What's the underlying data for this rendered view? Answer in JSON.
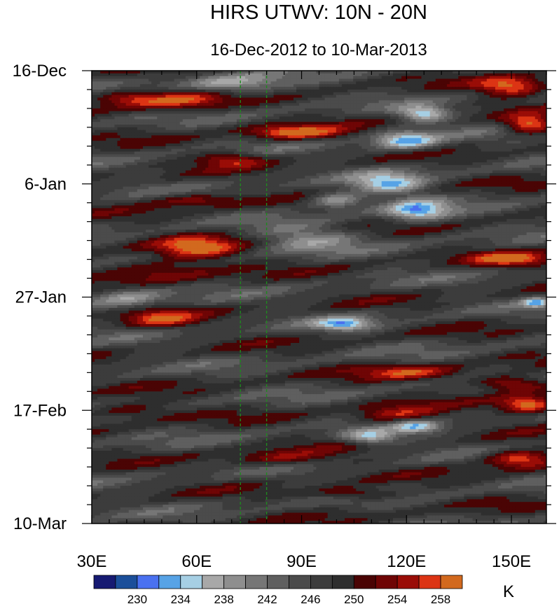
{
  "chart_data": {
    "type": "heatmap",
    "title": "HIRS UTWV: 10N - 20N",
    "subtitle": "16-Dec-2012 to 10-Mar-2013",
    "units": "K",
    "x_ticks": [
      {
        "value": 30,
        "label": "30E"
      },
      {
        "value": 60,
        "label": "60E"
      },
      {
        "value": 90,
        "label": "90E"
      },
      {
        "value": 120,
        "label": "120E"
      },
      {
        "value": 150,
        "label": "150E"
      }
    ],
    "x_range": [
      30,
      160
    ],
    "y_ticks": [
      {
        "value": 0,
        "label": "16-Dec"
      },
      {
        "value": 21,
        "label": "6-Jan"
      },
      {
        "value": 42,
        "label": "27-Jan"
      },
      {
        "value": 63,
        "label": "17-Feb"
      },
      {
        "value": 84,
        "label": "10-Mar"
      }
    ],
    "y_range_days": [
      0,
      84
    ],
    "reference_lines_lon": [
      72.5,
      80
    ],
    "colorbar": {
      "levels": [
        228,
        230,
        232,
        234,
        236,
        238,
        240,
        242,
        244,
        246,
        248,
        250,
        252,
        254,
        256,
        258,
        260
      ],
      "labels": [
        "230",
        "234",
        "238",
        "242",
        "246",
        "250",
        "254",
        "258"
      ],
      "label_values": [
        230,
        234,
        238,
        242,
        246,
        250,
        254,
        258
      ],
      "colors": [
        "#161a72",
        "#1b4f9a",
        "#4a71f0",
        "#57a3e6",
        "#a6cfe4",
        "#a8a8a8",
        "#8e8e8e",
        "#767676",
        "#5f5f5f",
        "#4b4b4b",
        "#3c3c3c",
        "#2e2e2e",
        "#4a0404",
        "#6f0505",
        "#9a0d07",
        "#dc3414",
        "#d2691e"
      ]
    },
    "features": [
      {
        "lon": 55,
        "day": 5.5,
        "peak": 256.5,
        "dlon": 13,
        "dday": 2.0
      },
      {
        "lon": 40,
        "day": 5.0,
        "peak": 254.5,
        "dlon": 9,
        "dday": 1.5
      },
      {
        "lon": 88,
        "day": 11.5,
        "peak": 259,
        "dlon": 13,
        "dday": 1.3
      },
      {
        "lon": 70,
        "day": 16.5,
        "peak": 255,
        "dlon": 9,
        "dday": 1.3
      },
      {
        "lon": 60,
        "day": 33.0,
        "peak": 258,
        "dlon": 12,
        "dday": 2.2
      },
      {
        "lon": 48,
        "day": 37.0,
        "peak": 255,
        "dlon": 16,
        "dday": 2.0
      },
      {
        "lon": 50,
        "day": 46.0,
        "peak": 255.5,
        "dlon": 10,
        "dday": 1.8
      },
      {
        "lon": 122,
        "day": 56.0,
        "peak": 255.5,
        "dlon": 14,
        "dday": 1.4
      },
      {
        "lon": 118,
        "day": 64.0,
        "peak": 256,
        "dlon": 12,
        "dday": 1.8
      },
      {
        "lon": 150,
        "day": 3.0,
        "peak": 259,
        "dlon": 10,
        "dday": 1.8
      },
      {
        "lon": 155,
        "day": 10.0,
        "peak": 260,
        "dlon": 7,
        "dday": 1.7
      },
      {
        "lon": 150,
        "day": 35.0,
        "peak": 258,
        "dlon": 11,
        "dday": 1.3
      },
      {
        "lon": 150,
        "day": 58.0,
        "peak": 258,
        "dlon": 11,
        "dday": 1.5
      },
      {
        "lon": 155,
        "day": 62.0,
        "peak": 260,
        "dlon": 8,
        "dday": 1.6
      },
      {
        "lon": 152,
        "day": 72.0,
        "peak": 259,
        "dlon": 10,
        "dday": 1.7
      },
      {
        "lon": 106,
        "day": 78.5,
        "peak": 255,
        "dlon": 12,
        "dday": 1.2
      },
      {
        "lon": 85,
        "day": 72.0,
        "peak": 253.5,
        "dlon": 16,
        "dday": 1.6
      },
      {
        "lon": 60,
        "day": 24.0,
        "peak": 253.5,
        "dlon": 14,
        "dday": 1.3
      },
      {
        "lon": 40,
        "day": 63.0,
        "peak": 254,
        "dlon": 14,
        "dday": 1.6
      },
      {
        "lon": 125,
        "day": 8.0,
        "peak": 234,
        "dlon": 7,
        "dday": 1.4
      },
      {
        "lon": 120,
        "day": 13.0,
        "peak": 233,
        "dlon": 9,
        "dday": 1.7
      },
      {
        "lon": 115,
        "day": 21.0,
        "peak": 235,
        "dlon": 10,
        "dday": 2.0
      },
      {
        "lon": 100,
        "day": 24.0,
        "peak": 236,
        "dlon": 8,
        "dday": 1.5
      },
      {
        "lon": 123,
        "day": 26.0,
        "peak": 234,
        "dlon": 9,
        "dday": 2.0
      },
      {
        "lon": 102,
        "day": 47.0,
        "peak": 235,
        "dlon": 8,
        "dday": 1.2
      },
      {
        "lon": 110,
        "day": 68.0,
        "peak": 235,
        "dlon": 8,
        "dday": 1.4
      },
      {
        "lon": 123,
        "day": 66.0,
        "peak": 235,
        "dlon": 7,
        "dday": 1.3
      },
      {
        "lon": 157,
        "day": 43.0,
        "peak": 236,
        "dlon": 4,
        "dday": 0.9
      },
      {
        "lon": 70,
        "day": 2.5,
        "peak": 238,
        "dlon": 14,
        "dday": 2.0
      },
      {
        "lon": 40,
        "day": 42.0,
        "peak": 239,
        "dlon": 10,
        "dday": 2.0
      },
      {
        "lon": 92,
        "day": 31.0,
        "peak": 239,
        "dlon": 14,
        "dday": 2.2
      }
    ]
  }
}
